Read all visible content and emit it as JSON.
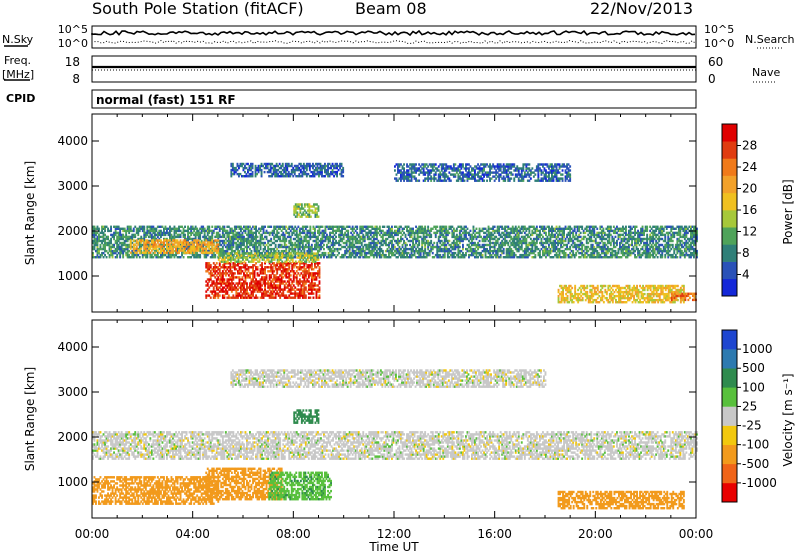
{
  "header": {
    "station": "South Pole Station (fitACF)",
    "beam": "Beam 08",
    "date": "22/Nov/2013"
  },
  "top_panels": {
    "nsky_label": "N.Sky",
    "nsky_ticks": [
      "10^5",
      "10^0"
    ],
    "nsearch_label": "N.Search",
    "nsearch_ticks": [
      "10^5",
      "10^0"
    ],
    "freq_label": "Freq.",
    "freq_unit": "[MHz]",
    "freq_ticks": [
      "18",
      "8"
    ],
    "nave_label": "Nave",
    "nave_ticks": [
      "60",
      "0"
    ],
    "cpid_label": "CPID",
    "cpid_value": "normal (fast) 151 RF"
  },
  "chart_data": [
    {
      "type": "heatmap",
      "panel": "power",
      "ylabel": "Slant Range [km]",
      "xlabel": "Time UT",
      "xlim": [
        0,
        24
      ],
      "ylim": [
        200,
        4600
      ],
      "yticks": [
        1000,
        2000,
        3000,
        4000
      ],
      "xticks": [
        0,
        4,
        8,
        12,
        16,
        20,
        24
      ],
      "xtick_labels": [
        "00:00",
        "04:00",
        "08:00",
        "12:00",
        "16:00",
        "20:00",
        "00:00"
      ],
      "colorbar": {
        "label": "Power [dB]",
        "range": [
          0,
          32
        ],
        "ticks": [
          "4",
          "8",
          "12",
          "16",
          "20",
          "24",
          "28"
        ],
        "colors": [
          "#1428d8",
          "#2a52b8",
          "#2f7f78",
          "#4fa35a",
          "#a6c83a",
          "#f0c020",
          "#f2a12a",
          "#f07a1a",
          "#e03c10",
          "#e00000"
        ]
      },
      "echo_regions": [
        {
          "t": [
            0.0,
            24.0
          ],
          "r": [
            1400,
            2100
          ],
          "v": 9
        },
        {
          "t": [
            1.5,
            5.0
          ],
          "r": [
            1500,
            1800
          ],
          "v": 20
        },
        {
          "t": [
            4.5,
            9.0
          ],
          "r": [
            500,
            1300
          ],
          "v": 28
        },
        {
          "t": [
            5.0,
            9.0
          ],
          "r": [
            1300,
            1500
          ],
          "v": 14
        },
        {
          "t": [
            5.5,
            10.0
          ],
          "r": [
            3200,
            3500
          ],
          "v": 6
        },
        {
          "t": [
            8.0,
            9.0
          ],
          "r": [
            2300,
            2600
          ],
          "v": 13
        },
        {
          "t": [
            12.0,
            19.0
          ],
          "r": [
            3100,
            3500
          ],
          "v": 6
        },
        {
          "t": [
            18.5,
            23.5
          ],
          "r": [
            400,
            800
          ],
          "v": 18
        },
        {
          "t": [
            23.0,
            24.0
          ],
          "r": [
            450,
            600
          ],
          "v": 24
        }
      ]
    },
    {
      "type": "heatmap",
      "panel": "velocity",
      "ylabel": "Slant Range [km]",
      "xlabel": "Time UT",
      "xlim": [
        0,
        24
      ],
      "ylim": [
        200,
        4600
      ],
      "yticks": [
        1000,
        2000,
        3000,
        4000
      ],
      "xticks": [
        0,
        4,
        8,
        12,
        16,
        20,
        24
      ],
      "xtick_labels": [
        "00:00",
        "04:00",
        "08:00",
        "12:00",
        "16:00",
        "20:00",
        "00:00"
      ],
      "colorbar": {
        "label": "Velocity [m s⁻¹]",
        "ticks": [
          "1000",
          "500",
          "100",
          "25",
          "-25",
          "-100",
          "-500",
          "-1000"
        ],
        "colors": [
          "#1e46d0",
          "#2d7ab0",
          "#2f8b4e",
          "#58c03c",
          "#c8c8c8",
          "#f2c80e",
          "#f29a1c",
          "#f06418",
          "#e80000"
        ]
      },
      "echo_regions": [
        {
          "t": [
            0.0,
            24.0
          ],
          "r": [
            1500,
            2100
          ],
          "v": 0
        },
        {
          "t": [
            0.0,
            5.0
          ],
          "r": [
            500,
            1100
          ],
          "v": -300
        },
        {
          "t": [
            4.5,
            7.5
          ],
          "r": [
            600,
            1300
          ],
          "v": -300
        },
        {
          "t": [
            7.0,
            9.5
          ],
          "r": [
            600,
            1200
          ],
          "v": 80
        },
        {
          "t": [
            5.5,
            18.0
          ],
          "r": [
            3100,
            3500
          ],
          "v": 0
        },
        {
          "t": [
            8.0,
            9.0
          ],
          "r": [
            2300,
            2600
          ],
          "v": 200
        },
        {
          "t": [
            18.5,
            23.5
          ],
          "r": [
            400,
            800
          ],
          "v": -300
        }
      ]
    }
  ]
}
